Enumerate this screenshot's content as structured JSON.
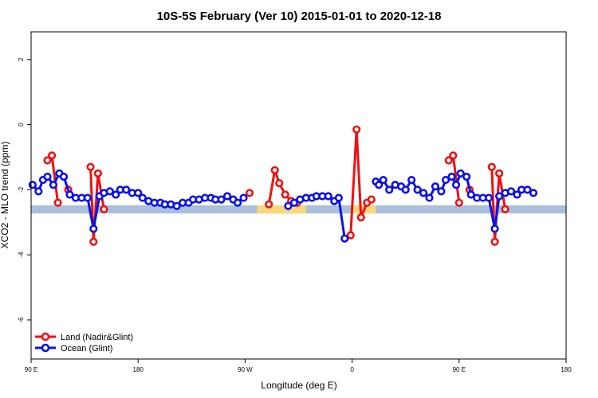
{
  "chart_data": {
    "type": "line",
    "title": "10S-5S February (Ver 10)   2015-01-01 to 2020-12-18",
    "xlabel": "Longitude (deg E)",
    "ylabel": "XCO2 - MLO trend (ppm)",
    "xlim": [
      90,
      450
    ],
    "ylim": [
      -7.2,
      2.85
    ],
    "x_ticks": [
      {
        "value": 90,
        "label": "90 E"
      },
      {
        "value": 162,
        "label": "180"
      },
      {
        "value": 234,
        "label": "90 W"
      },
      {
        "value": 306,
        "label": "0"
      },
      {
        "value": 378,
        "label": "90 E"
      },
      {
        "value": 450,
        "label": "180"
      }
    ],
    "y_ticks": [
      {
        "value": 2,
        "label": "2"
      },
      {
        "value": 0,
        "label": "0"
      },
      {
        "value": -2,
        "label": "-2"
      },
      {
        "value": -4,
        "label": "-4"
      },
      {
        "value": -6,
        "label": "-6"
      }
    ],
    "reference_band": {
      "y_range": [
        -2.73,
        -2.48
      ],
      "color": "#a9bfdc",
      "land_color": "#f9d77c",
      "land_x_ranges": [
        [
          242,
          275
        ],
        [
          306,
          322
        ]
      ]
    },
    "legend_position": "bottom-left",
    "series": [
      {
        "name": "Land (Nadir&Glint)",
        "color": "#ee1111",
        "segments": [
          [
            [
              101,
              -1.1
            ],
            [
              104,
              -0.95
            ],
            [
              108,
              -2.4
            ]
          ],
          [
            [
              115,
              -2.0
            ]
          ],
          [
            [
              130,
              -1.3
            ],
            [
              132,
              -3.6
            ],
            [
              135,
              -1.5
            ],
            [
              139,
              -2.6
            ]
          ],
          [
            [
              237,
              -2.1
            ]
          ],
          [
            [
              250,
              -2.45
            ],
            [
              254,
              -1.4
            ],
            [
              257,
              -1.8
            ],
            [
              261,
              -2.15
            ],
            [
              265,
              -2.35
            ],
            [
              269,
              -2.4
            ]
          ],
          [
            [
              305,
              -3.4
            ],
            [
              309,
              -0.15
            ],
            [
              312,
              -2.85
            ],
            [
              316,
              -2.4
            ],
            [
              319,
              -2.3
            ]
          ],
          [
            [
              371,
              -1.1
            ],
            [
              374,
              -0.95
            ],
            [
              378,
              -2.4
            ]
          ],
          [
            [
              385,
              -2.0
            ]
          ],
          [
            [
              400,
              -1.3
            ],
            [
              402,
              -3.6
            ],
            [
              405,
              -1.5
            ],
            [
              409,
              -2.6
            ]
          ]
        ]
      },
      {
        "name": "Ocean (Glint)",
        "color": "#0b11e6",
        "segments": [
          [
            [
              91,
              -1.85
            ],
            [
              95,
              -2.05
            ],
            [
              98,
              -1.7
            ],
            [
              101,
              -1.6
            ],
            [
              105,
              -1.85
            ],
            [
              109,
              -1.5
            ],
            [
              112,
              -1.6
            ],
            [
              116,
              -2.15
            ],
            [
              120,
              -2.25
            ],
            [
              124,
              -2.25
            ],
            [
              128,
              -2.25
            ],
            [
              132,
              -3.2
            ],
            [
              136,
              -2.2
            ],
            [
              139,
              -2.1
            ],
            [
              143,
              -2.05
            ],
            [
              147,
              -2.15
            ],
            [
              150,
              -2.0
            ],
            [
              154,
              -2.0
            ],
            [
              158,
              -2.1
            ],
            [
              162,
              -2.1
            ],
            [
              165,
              -2.25
            ],
            [
              169,
              -2.35
            ],
            [
              173,
              -2.4
            ],
            [
              177,
              -2.4
            ],
            [
              180,
              -2.45
            ],
            [
              184,
              -2.45
            ],
            [
              188,
              -2.5
            ],
            [
              192,
              -2.4
            ],
            [
              196,
              -2.4
            ],
            [
              199,
              -2.3
            ],
            [
              203,
              -2.3
            ],
            [
              207,
              -2.25
            ],
            [
              211,
              -2.25
            ],
            [
              214,
              -2.3
            ],
            [
              218,
              -2.3
            ],
            [
              222,
              -2.2
            ],
            [
              226,
              -2.3
            ],
            [
              229,
              -2.4
            ],
            [
              233,
              -2.25
            ]
          ],
          [
            [
              263,
              -2.5
            ],
            [
              267,
              -2.4
            ],
            [
              271,
              -2.3
            ],
            [
              275,
              -2.25
            ],
            [
              279,
              -2.25
            ],
            [
              282,
              -2.2
            ],
            [
              286,
              -2.2
            ],
            [
              290,
              -2.2
            ],
            [
              294,
              -2.35
            ],
            [
              297,
              -2.25
            ],
            [
              301,
              -3.5
            ]
          ],
          [
            [
              322,
              -1.75
            ],
            [
              324,
              -1.85
            ],
            [
              327,
              -1.7
            ],
            [
              331,
              -2.0
            ],
            [
              335,
              -1.85
            ],
            [
              339,
              -1.9
            ],
            [
              342,
              -2.0
            ],
            [
              346,
              -1.7
            ],
            [
              350,
              -2.0
            ],
            [
              354,
              -2.1
            ],
            [
              358,
              -2.25
            ],
            [
              362,
              -1.9
            ],
            [
              366,
              -2.05
            ],
            [
              369,
              -1.7
            ],
            [
              373,
              -1.6
            ],
            [
              376,
              -1.85
            ],
            [
              379,
              -1.5
            ],
            [
              383,
              -1.6
            ],
            [
              386,
              -2.15
            ],
            [
              390,
              -2.25
            ],
            [
              394,
              -2.25
            ],
            [
              398,
              -2.25
            ],
            [
              402,
              -3.2
            ],
            [
              405,
              -2.2
            ],
            [
              409,
              -2.1
            ],
            [
              413,
              -2.05
            ],
            [
              417,
              -2.15
            ],
            [
              420,
              -2.0
            ],
            [
              424,
              -2.0
            ],
            [
              428,
              -2.1
            ]
          ]
        ]
      }
    ]
  }
}
